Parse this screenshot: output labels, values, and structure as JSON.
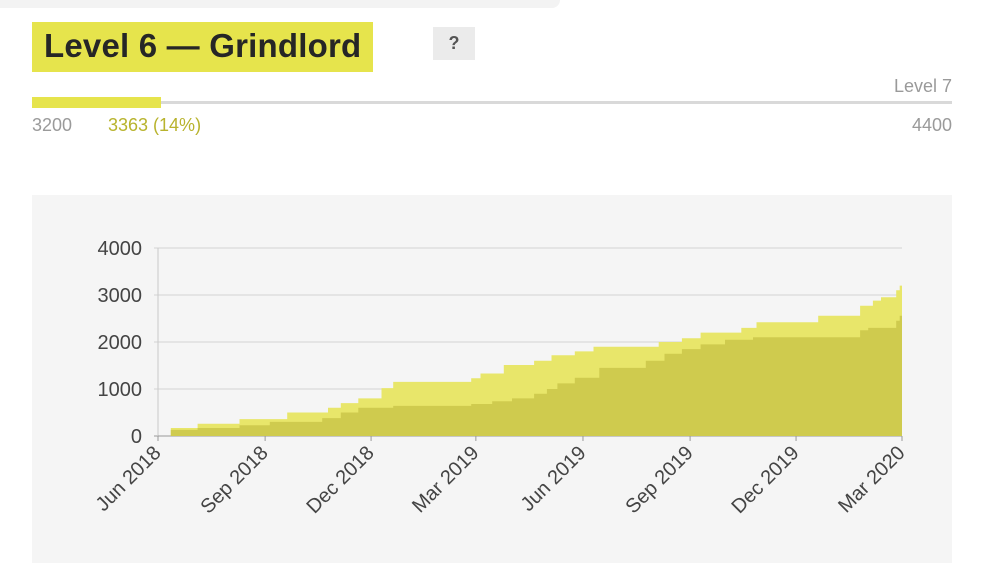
{
  "header": {
    "title": "Level 6 — Grindlord",
    "help_label": "?"
  },
  "progress": {
    "next_level_label": "Level 7",
    "start_value": "3200",
    "current_value": "3363 (14%)",
    "end_value": "4400",
    "fraction": 0.14
  },
  "colors": {
    "accent": "#e6e44c",
    "accent_dark": "#cfcb4e",
    "accent_light": "#e8e66a"
  },
  "chart_data": {
    "type": "area",
    "title": "",
    "xlabel": "",
    "ylabel": "",
    "ylim": [
      0,
      4000
    ],
    "xlim": [
      "2018-06-01",
      "2020-03-01"
    ],
    "grid": true,
    "y_ticks": [
      "0",
      "1000",
      "2000",
      "3000",
      "4000"
    ],
    "x_ticks": [
      {
        "label": "Jun 2018",
        "date": "2018-06-01"
      },
      {
        "label": "Sep 2018",
        "date": "2018-09-01"
      },
      {
        "label": "Dec 2018",
        "date": "2018-12-01"
      },
      {
        "label": "Mar 2019",
        "date": "2019-03-01"
      },
      {
        "label": "Jun 2019",
        "date": "2019-06-01"
      },
      {
        "label": "Sep 2019",
        "date": "2019-09-01"
      },
      {
        "label": "Dec 2019",
        "date": "2019-12-01"
      },
      {
        "label": "Mar 2020",
        "date": "2020-03-01"
      }
    ],
    "series": [
      {
        "color": "#e8e66a",
        "points": [
          [
            "2018-06-12",
            0
          ],
          [
            "2018-06-12",
            170
          ],
          [
            "2018-07-05",
            170
          ],
          [
            "2018-07-05",
            260
          ],
          [
            "2018-08-10",
            260
          ],
          [
            "2018-08-10",
            360
          ],
          [
            "2018-09-20",
            360
          ],
          [
            "2018-09-20",
            500
          ],
          [
            "2018-10-25",
            500
          ],
          [
            "2018-10-25",
            600
          ],
          [
            "2018-11-05",
            600
          ],
          [
            "2018-11-05",
            700
          ],
          [
            "2018-11-20",
            700
          ],
          [
            "2018-11-20",
            800
          ],
          [
            "2018-12-10",
            800
          ],
          [
            "2018-12-10",
            1020
          ],
          [
            "2018-12-20",
            1020
          ],
          [
            "2018-12-20",
            1150
          ],
          [
            "2019-02-25",
            1150
          ],
          [
            "2019-02-25",
            1230
          ],
          [
            "2019-03-05",
            1230
          ],
          [
            "2019-03-05",
            1330
          ],
          [
            "2019-03-25",
            1330
          ],
          [
            "2019-03-25",
            1510
          ],
          [
            "2019-04-20",
            1510
          ],
          [
            "2019-04-20",
            1600
          ],
          [
            "2019-05-05",
            1600
          ],
          [
            "2019-05-05",
            1720
          ],
          [
            "2019-05-25",
            1720
          ],
          [
            "2019-05-25",
            1800
          ],
          [
            "2019-06-10",
            1800
          ],
          [
            "2019-06-10",
            1900
          ],
          [
            "2019-08-05",
            1900
          ],
          [
            "2019-08-05",
            2000
          ],
          [
            "2019-08-25",
            2000
          ],
          [
            "2019-08-25",
            2080
          ],
          [
            "2019-09-10",
            2080
          ],
          [
            "2019-09-10",
            2200
          ],
          [
            "2019-10-15",
            2200
          ],
          [
            "2019-10-15",
            2300
          ],
          [
            "2019-10-28",
            2300
          ],
          [
            "2019-10-28",
            2420
          ],
          [
            "2019-12-20",
            2420
          ],
          [
            "2019-12-20",
            2560
          ],
          [
            "2020-01-25",
            2560
          ],
          [
            "2020-01-25",
            2770
          ],
          [
            "2020-02-05",
            2770
          ],
          [
            "2020-02-05",
            2880
          ],
          [
            "2020-02-12",
            2880
          ],
          [
            "2020-02-12",
            2950
          ],
          [
            "2020-02-25",
            2950
          ],
          [
            "2020-02-25",
            3100
          ],
          [
            "2020-02-28",
            3100
          ],
          [
            "2020-02-28",
            3200
          ],
          [
            "2020-03-01",
            3200
          ],
          [
            "2020-03-01",
            0
          ]
        ]
      },
      {
        "color": "#cfcb4e",
        "points": [
          [
            "2018-06-12",
            0
          ],
          [
            "2018-06-12",
            130
          ],
          [
            "2018-07-05",
            130
          ],
          [
            "2018-07-05",
            170
          ],
          [
            "2018-08-10",
            170
          ],
          [
            "2018-08-10",
            230
          ],
          [
            "2018-09-05",
            230
          ],
          [
            "2018-09-05",
            300
          ],
          [
            "2018-10-20",
            300
          ],
          [
            "2018-10-20",
            380
          ],
          [
            "2018-11-05",
            380
          ],
          [
            "2018-11-05",
            500
          ],
          [
            "2018-11-20",
            500
          ],
          [
            "2018-11-20",
            600
          ],
          [
            "2018-12-20",
            600
          ],
          [
            "2018-12-20",
            640
          ],
          [
            "2019-02-25",
            640
          ],
          [
            "2019-02-25",
            680
          ],
          [
            "2019-03-15",
            680
          ],
          [
            "2019-03-15",
            740
          ],
          [
            "2019-04-01",
            740
          ],
          [
            "2019-04-01",
            800
          ],
          [
            "2019-04-20",
            800
          ],
          [
            "2019-04-20",
            900
          ],
          [
            "2019-05-01",
            900
          ],
          [
            "2019-05-01",
            1000
          ],
          [
            "2019-05-10",
            1000
          ],
          [
            "2019-05-10",
            1120
          ],
          [
            "2019-05-25",
            1120
          ],
          [
            "2019-05-25",
            1240
          ],
          [
            "2019-06-15",
            1240
          ],
          [
            "2019-06-15",
            1450
          ],
          [
            "2019-07-25",
            1450
          ],
          [
            "2019-07-25",
            1600
          ],
          [
            "2019-08-10",
            1600
          ],
          [
            "2019-08-10",
            1750
          ],
          [
            "2019-08-25",
            1750
          ],
          [
            "2019-08-25",
            1850
          ],
          [
            "2019-09-10",
            1850
          ],
          [
            "2019-09-10",
            1950
          ],
          [
            "2019-10-01",
            1950
          ],
          [
            "2019-10-01",
            2050
          ],
          [
            "2019-10-25",
            2050
          ],
          [
            "2019-10-25",
            2100
          ],
          [
            "2020-01-25",
            2100
          ],
          [
            "2020-01-25",
            2250
          ],
          [
            "2020-02-01",
            2250
          ],
          [
            "2020-02-01",
            2300
          ],
          [
            "2020-02-25",
            2300
          ],
          [
            "2020-02-25",
            2450
          ],
          [
            "2020-02-28",
            2450
          ],
          [
            "2020-02-28",
            2560
          ],
          [
            "2020-03-01",
            2560
          ],
          [
            "2020-03-01",
            0
          ]
        ]
      }
    ]
  }
}
